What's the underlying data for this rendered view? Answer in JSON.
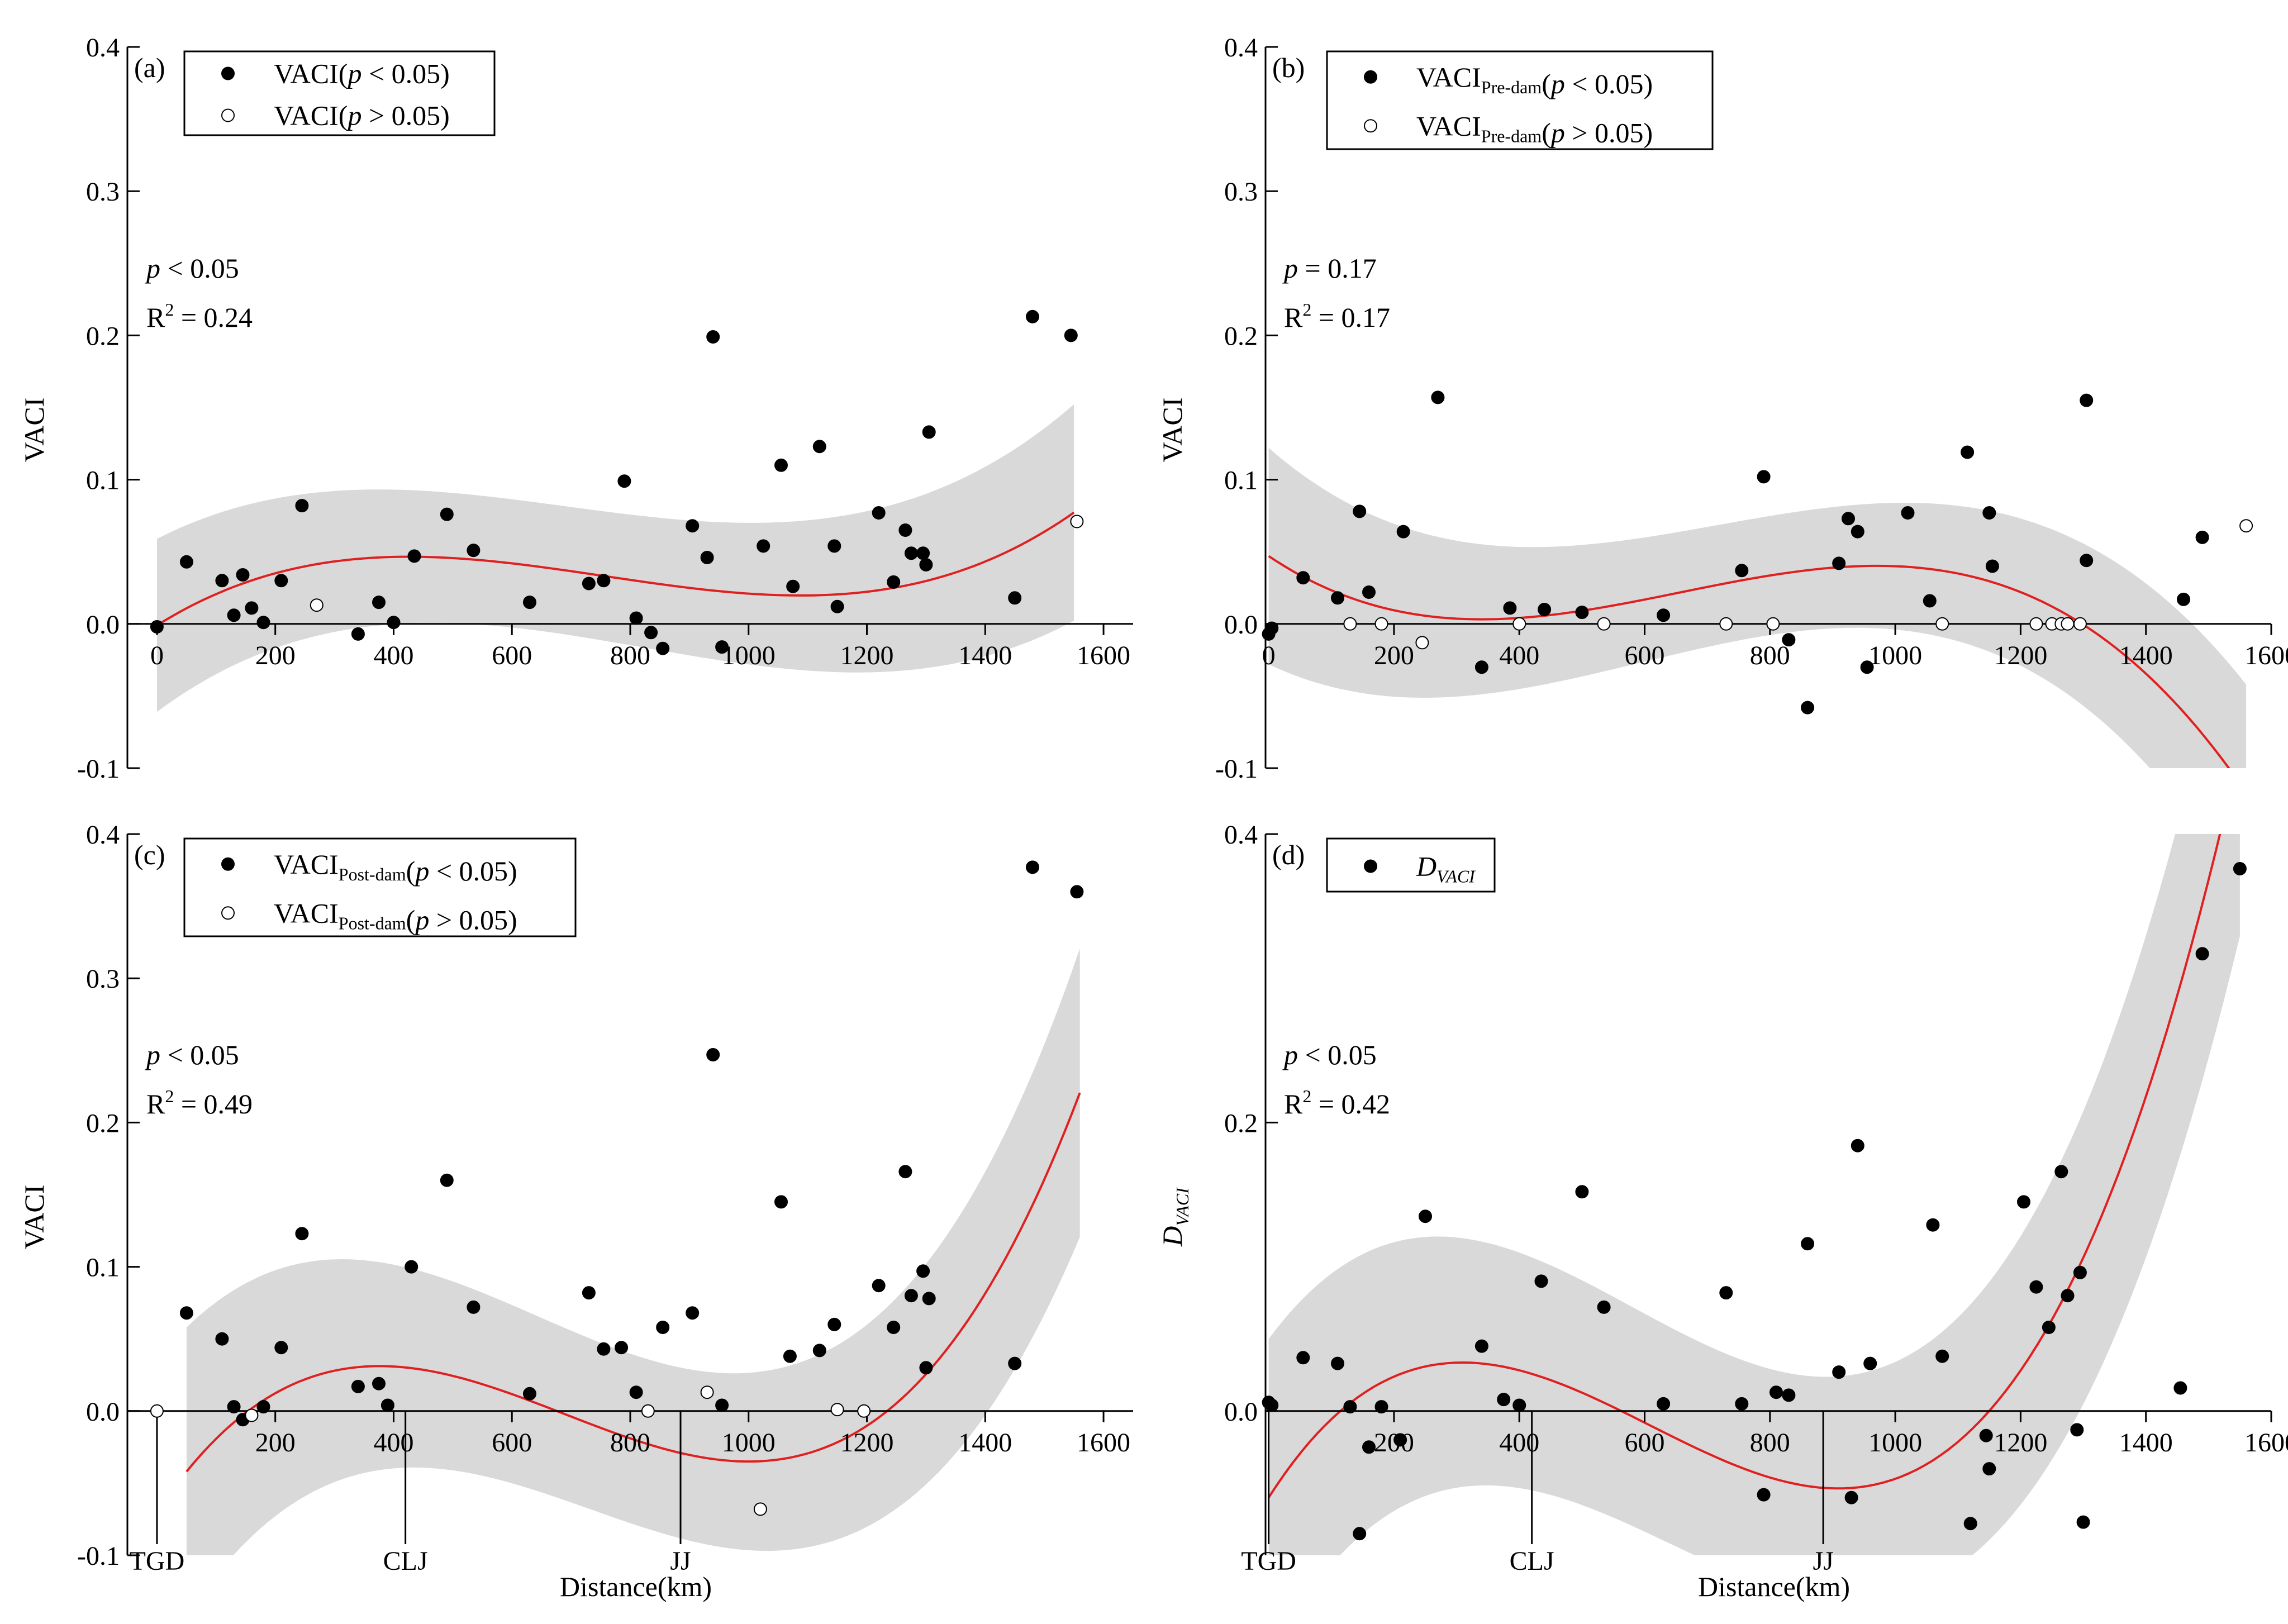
{
  "colors": {
    "fit": "#e02020",
    "band": "#d9d9d9",
    "point": "#000000",
    "background": "#ffffff"
  },
  "chart_data": [
    {
      "type": "scatter",
      "id": "a",
      "panel_label": "(a)",
      "xlim": [
        -50,
        1650
      ],
      "ylim": [
        -0.1,
        0.4
      ],
      "xticks": [
        "0",
        "200",
        "400",
        "600",
        "800",
        "1000",
        "1200",
        "1400",
        "1600"
      ],
      "yticks": [
        "-0.1",
        "0.0",
        "0.1",
        "0.2",
        "0.3",
        "0.4"
      ],
      "xlabel": "",
      "ylabel": "VACI",
      "ylabel_sub": "",
      "stats": {
        "p": "p < 0.05",
        "r2_value": "0.24"
      },
      "legend": [
        {
          "base": "VACI",
          "sub": "",
          "cond": "(p < 0.05)",
          "filled": true
        },
        {
          "base": "VACI",
          "sub": "",
          "cond": "(p > 0.05)",
          "filled": false
        }
      ],
      "fit_coeffs": [
        -0.001,
        0.000257,
        -4.2e-07,
        1.85e-10
      ],
      "fit_range": [
        0,
        1550
      ],
      "band_width": [
        0.06,
        0.035,
        0.04,
        0.075
      ],
      "markers": [],
      "series": [
        {
          "name": "significant",
          "filled": true,
          "points": [
            [
              0,
              -0.002
            ],
            [
              50,
              0.043
            ],
            [
              110,
              0.03
            ],
            [
              130,
              0.006
            ],
            [
              145,
              0.034
            ],
            [
              160,
              0.011
            ],
            [
              180,
              0.001
            ],
            [
              210,
              0.03
            ],
            [
              245,
              0.082
            ],
            [
              340,
              -0.007
            ],
            [
              375,
              0.015
            ],
            [
              400,
              0.001
            ],
            [
              435,
              0.047
            ],
            [
              490,
              0.076
            ],
            [
              535,
              0.051
            ],
            [
              630,
              0.015
            ],
            [
              730,
              0.028
            ],
            [
              755,
              0.03
            ],
            [
              790,
              0.099
            ],
            [
              810,
              0.004
            ],
            [
              835,
              -0.006
            ],
            [
              855,
              -0.017
            ],
            [
              905,
              0.068
            ],
            [
              930,
              0.046
            ],
            [
              940,
              0.199
            ],
            [
              955,
              -0.016
            ],
            [
              1025,
              0.054
            ],
            [
              1055,
              0.11
            ],
            [
              1075,
              0.026
            ],
            [
              1120,
              0.123
            ],
            [
              1145,
              0.054
            ],
            [
              1150,
              0.012
            ],
            [
              1220,
              0.077
            ],
            [
              1245,
              0.029
            ],
            [
              1265,
              0.065
            ],
            [
              1275,
              0.049
            ],
            [
              1295,
              0.049
            ],
            [
              1300,
              0.041
            ],
            [
              1305,
              0.133
            ],
            [
              1450,
              0.018
            ],
            [
              1480,
              0.213
            ],
            [
              1545,
              0.2
            ]
          ]
        },
        {
          "name": "non-significant",
          "filled": false,
          "points": [
            [
              270,
              0.013
            ],
            [
              1555,
              0.071
            ]
          ]
        }
      ]
    },
    {
      "type": "scatter",
      "id": "b",
      "panel_label": "(b)",
      "xlim": [
        -5,
        1600
      ],
      "ylim": [
        -0.1,
        0.4
      ],
      "xticks": [
        "0",
        "200",
        "400",
        "600",
        "800",
        "1000",
        "1200",
        "1400",
        "1600"
      ],
      "yticks": [
        "-0.1",
        "0.0",
        "0.1",
        "0.2",
        "0.3",
        "0.4"
      ],
      "xlabel": "",
      "ylabel": "VACI",
      "ylabel_sub": "",
      "stats": {
        "p": "p = 0.17",
        "r2_value": "0.17"
      },
      "legend": [
        {
          "base": "VACI",
          "sub": "Pre-dam",
          "cond": "(p < 0.05)",
          "filled": true
        },
        {
          "base": "VACI",
          "sub": "Pre-dam",
          "cond": "(p > 0.05)",
          "filled": false
        }
      ],
      "fit_coeffs": [
        0.047,
        -0.000292,
        5.8e-07,
        -2.95e-10
      ],
      "fit_range": [
        0,
        1560
      ],
      "band_width": [
        0.075,
        0.03,
        0.03,
        0.075
      ],
      "markers": [],
      "series": [
        {
          "name": "significant",
          "filled": true,
          "points": [
            [
              0,
              -0.007
            ],
            [
              5,
              -0.003
            ],
            [
              55,
              0.032
            ],
            [
              110,
              0.018
            ],
            [
              145,
              0.078
            ],
            [
              160,
              0.022
            ],
            [
              215,
              0.064
            ],
            [
              270,
              0.157
            ],
            [
              340,
              -0.03
            ],
            [
              385,
              0.011
            ],
            [
              440,
              0.01
            ],
            [
              500,
              0.008
            ],
            [
              630,
              0.006
            ],
            [
              755,
              0.037
            ],
            [
              790,
              0.102
            ],
            [
              830,
              -0.011
            ],
            [
              860,
              -0.058
            ],
            [
              910,
              0.042
            ],
            [
              925,
              0.073
            ],
            [
              940,
              0.064
            ],
            [
              955,
              -0.03
            ],
            [
              1020,
              0.077
            ],
            [
              1055,
              0.016
            ],
            [
              1115,
              0.119
            ],
            [
              1150,
              0.077
            ],
            [
              1155,
              0.04
            ],
            [
              1305,
              0.044
            ],
            [
              1305,
              0.155
            ],
            [
              1460,
              0.017
            ],
            [
              1490,
              0.06
            ]
          ]
        },
        {
          "name": "non-significant",
          "filled": false,
          "points": [
            [
              130,
              0.0
            ],
            [
              180,
              0.0
            ],
            [
              245,
              -0.013
            ],
            [
              400,
              0.0
            ],
            [
              535,
              0.0
            ],
            [
              730,
              0.0
            ],
            [
              805,
              0.0
            ],
            [
              1075,
              0.0
            ],
            [
              1225,
              0.0
            ],
            [
              1250,
              0.0
            ],
            [
              1265,
              0.0
            ],
            [
              1275,
              0.0
            ],
            [
              1295,
              0.0
            ],
            [
              1560,
              0.068
            ]
          ]
        }
      ]
    },
    {
      "type": "scatter",
      "id": "c",
      "panel_label": "(c)",
      "xlim": [
        -50,
        1650
      ],
      "ylim": [
        -0.1,
        0.4
      ],
      "xticks": [
        "200",
        "400",
        "600",
        "800",
        "1000",
        "1200",
        "1400",
        "1600"
      ],
      "yticks": [
        "-0.1",
        "0.0",
        "0.1",
        "0.2",
        "0.3",
        "0.4"
      ],
      "xlabel": "Distance(km)",
      "ylabel": "VACI",
      "ylabel_sub": "",
      "stats": {
        "p": "p < 0.05",
        "r2_value": "0.49"
      },
      "legend": [
        {
          "base": "VACI",
          "sub": "Post-dam",
          "cond": "(p < 0.05)",
          "filled": true
        },
        {
          "base": "VACI",
          "sub": "Post-dam",
          "cond": "(p > 0.05)",
          "filled": false
        }
      ],
      "fit_coeffs": [
        -0.07,
        0.000615,
        -1.125e-06,
        5.45e-10
      ],
      "fit_range": [
        50,
        1560
      ],
      "band_width": [
        0.1,
        0.045,
        0.045,
        0.1
      ],
      "markers": [
        {
          "label": "TGD",
          "x": 0
        },
        {
          "label": "CLJ",
          "x": 420
        },
        {
          "label": "JJ",
          "x": 885
        }
      ],
      "series": [
        {
          "name": "significant",
          "filled": true,
          "points": [
            [
              50,
              0.068
            ],
            [
              110,
              0.05
            ],
            [
              130,
              0.003
            ],
            [
              145,
              -0.006
            ],
            [
              180,
              0.003
            ],
            [
              210,
              0.044
            ],
            [
              245,
              0.123
            ],
            [
              340,
              0.017
            ],
            [
              375,
              0.019
            ],
            [
              390,
              0.004
            ],
            [
              430,
              0.1
            ],
            [
              490,
              0.16
            ],
            [
              535,
              0.072
            ],
            [
              630,
              0.012
            ],
            [
              730,
              0.082
            ],
            [
              755,
              0.043
            ],
            [
              785,
              0.044
            ],
            [
              810,
              0.013
            ],
            [
              855,
              0.058
            ],
            [
              905,
              0.068
            ],
            [
              940,
              0.247
            ],
            [
              955,
              0.004
            ],
            [
              1055,
              0.145
            ],
            [
              1070,
              0.038
            ],
            [
              1120,
              0.042
            ],
            [
              1145,
              0.06
            ],
            [
              1220,
              0.087
            ],
            [
              1245,
              0.058
            ],
            [
              1265,
              0.166
            ],
            [
              1275,
              0.08
            ],
            [
              1295,
              0.097
            ],
            [
              1300,
              0.03
            ],
            [
              1305,
              0.078
            ],
            [
              1450,
              0.033
            ],
            [
              1480,
              0.377
            ],
            [
              1555,
              0.36
            ]
          ]
        },
        {
          "name": "non-significant",
          "filled": false,
          "points": [
            [
              0,
              0.0
            ],
            [
              160,
              -0.003
            ],
            [
              830,
              0.0
            ],
            [
              930,
              0.013
            ],
            [
              1020,
              -0.068
            ],
            [
              1150,
              0.001
            ],
            [
              1195,
              0.0
            ]
          ]
        }
      ]
    },
    {
      "type": "scatter",
      "id": "d",
      "panel_label": "(d)",
      "xlim": [
        -5,
        1600
      ],
      "ylim": [
        -0.1,
        0.4
      ],
      "xticks": [
        "200",
        "400",
        "600",
        "800",
        "1000",
        "1200",
        "1400",
        "1600"
      ],
      "yticks": [
        "0.0",
        "0.2",
        "0.4"
      ],
      "xlabel": "Distance(km)",
      "ylabel": "D",
      "ylabel_sub": "VACI",
      "stats": {
        "p": "p < 0.05",
        "r2_value": "0.42"
      },
      "legend": [
        {
          "base": "D",
          "sub": "VACI",
          "cond": "",
          "filled": true,
          "italic": true
        }
      ],
      "fit_coeffs": [
        -0.06,
        0.000683,
        -1.48e-06,
        8.1e-10
      ],
      "fit_range": [
        0,
        1550
      ],
      "band_width": [
        0.11,
        0.06,
        0.06,
        0.13
      ],
      "markers": [
        {
          "label": "TGD",
          "x": 0
        },
        {
          "label": "CLJ",
          "x": 420
        },
        {
          "label": "JJ",
          "x": 885
        }
      ],
      "series": [
        {
          "name": "D_VACI",
          "filled": true,
          "points": [
            [
              0,
              0.006
            ],
            [
              5,
              0.004
            ],
            [
              55,
              0.037
            ],
            [
              110,
              0.033
            ],
            [
              130,
              0.003
            ],
            [
              145,
              -0.085
            ],
            [
              160,
              -0.025
            ],
            [
              180,
              0.003
            ],
            [
              210,
              -0.02
            ],
            [
              250,
              0.135
            ],
            [
              340,
              0.045
            ],
            [
              375,
              0.008
            ],
            [
              400,
              0.004
            ],
            [
              435,
              0.09
            ],
            [
              500,
              0.152
            ],
            [
              535,
              0.072
            ],
            [
              630,
              0.005
            ],
            [
              730,
              0.082
            ],
            [
              755,
              0.005
            ],
            [
              790,
              -0.058
            ],
            [
              810,
              0.013
            ],
            [
              830,
              0.011
            ],
            [
              860,
              0.116
            ],
            [
              910,
              0.027
            ],
            [
              930,
              -0.06
            ],
            [
              940,
              0.184
            ],
            [
              960,
              0.033
            ],
            [
              1060,
              0.129
            ],
            [
              1075,
              0.038
            ],
            [
              1120,
              -0.078
            ],
            [
              1145,
              -0.017
            ],
            [
              1150,
              -0.04
            ],
            [
              1205,
              0.145
            ],
            [
              1225,
              0.086
            ],
            [
              1245,
              0.058
            ],
            [
              1265,
              0.166
            ],
            [
              1275,
              0.08
            ],
            [
              1290,
              -0.013
            ],
            [
              1295,
              0.096
            ],
            [
              1300,
              -0.077
            ],
            [
              1455,
              0.016
            ],
            [
              1490,
              0.317
            ],
            [
              1550,
              0.376
            ]
          ]
        }
      ]
    }
  ]
}
